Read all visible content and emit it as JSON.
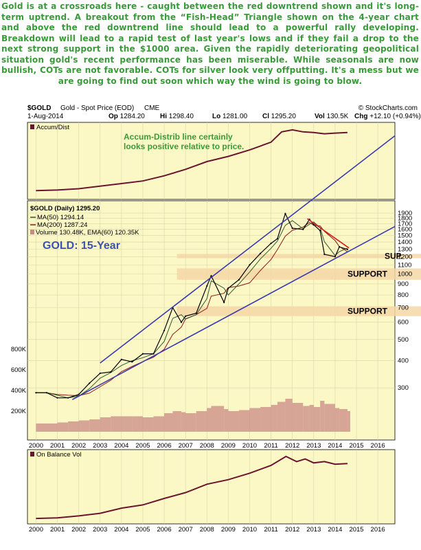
{
  "commentary": "Gold is at a crossroads here - caught between the red downtrend shown and it's long-term uptrend. A breakout from the “Fish-Head” Triangle shown on the 4-year chart and above the red downtrend line should lead to a powerful rally developing. Breakdown will lead to a rapid test of last year's lows and if they fail a drop to the next strong support in the $1000 area. Given the rapidly deteriorating geopolitical situation gold's recent performance has been miserable. While seasonals are now bullish, COTs are not favorable. COTs for silver look very offputting. It's a mess but we are going to find out soon which way the wind is going to blow.",
  "header": {
    "symbol": "$GOLD",
    "name": "Gold - Spot Price (EOD)",
    "exchange": "CME",
    "copyright": "© StockCharts.com",
    "date": "1-Aug-2014",
    "op_label": "Op",
    "op": "1284.20",
    "hi_label": "Hi",
    "hi": "1298.40",
    "lo_label": "Lo",
    "lo": "1281.00",
    "cl_label": "Cl",
    "cl": "1295.20",
    "vol_label": "Vol",
    "vol": "130.5K",
    "chg_label": "Chg",
    "chg": "+12.10 (+0.94%)"
  },
  "colors": {
    "panel_bg": "#fbf8c6",
    "grid": "#d8d4a8",
    "price": "#000000",
    "ma50": "#2d5a2d",
    "ma200": "#8b1a1a",
    "volume": "#c98a86",
    "indicator": "#6b1430",
    "trendline": "#3a3ab0",
    "downtrend": "#d02020",
    "support_band": "#f5d7a6",
    "annotation_green": "#3a9a3a",
    "title_blue": "#3d4fb0",
    "breakout_fill": "#8fb8a0"
  },
  "top_panel": {
    "legend": "Accum/Dist",
    "annotation_line1": "Accum-Distrib line certainly",
    "annotation_line2": "looks positive relative to price."
  },
  "legend": {
    "price": "$GOLD (Daily) 1295.20",
    "ma50": "MA(50) 1294.14",
    "ma200": "MA(200) 1287.24",
    "volume": "Volume 130.48K, EMA(60) 120.35K",
    "title": "GOLD: 15-Year"
  },
  "supports": [
    {
      "label": "SUP.",
      "low": 1180,
      "high": 1235
    },
    {
      "label": "SUPPORT",
      "low": 940,
      "high": 1060
    },
    {
      "label": "SUPPORT",
      "low": 640,
      "high": 710
    }
  ],
  "bottom_panel": {
    "legend": "On Balance Vol"
  },
  "chart_data": {
    "type": "line",
    "x": [
      2000.0,
      2000.5,
      2001.0,
      2001.5,
      2002.0,
      2002.5,
      2003.0,
      2003.5,
      2004.0,
      2004.5,
      2005.0,
      2005.5,
      2006.0,
      2006.4,
      2006.8,
      2007.0,
      2007.5,
      2008.0,
      2008.2,
      2008.8,
      2009.0,
      2009.5,
      2010.0,
      2010.5,
      2011.0,
      2011.3,
      2011.67,
      2012.0,
      2012.5,
      2012.8,
      2013.0,
      2013.3,
      2013.5,
      2014.0,
      2014.2,
      2014.58
    ],
    "series": [
      {
        "name": "$GOLD (Daily) 1295.20",
        "values": [
          285,
          285,
          270,
          270,
          280,
          315,
          350,
          355,
          405,
          395,
          430,
          430,
          550,
          700,
          600,
          640,
          660,
          880,
          980,
          740,
          860,
          940,
          1100,
          1240,
          1380,
          1450,
          1890,
          1620,
          1600,
          1780,
          1680,
          1580,
          1230,
          1200,
          1330,
          1295
        ]
      }
    ],
    "xlabel": "",
    "ylabel": "",
    "xlim": [
      1999.6,
      2016.8
    ],
    "ylim": [
      200,
      1900
    ],
    "y_scale": "log",
    "x_tick_labels": [
      "2000",
      "2001",
      "2002",
      "2003",
      "2004",
      "2005",
      "2006",
      "2007",
      "2008",
      "2009",
      "2010",
      "2011",
      "2012",
      "2013",
      "2014",
      "2015",
      "2016"
    ],
    "y_ticks_right": [
      300,
      400,
      500,
      600,
      700,
      800,
      900,
      1000,
      1100,
      1200,
      1300,
      1400,
      1500,
      1600,
      1700,
      1800,
      1900
    ],
    "volume_axis_labels": [
      "200K",
      "400K",
      "600K",
      "800K"
    ],
    "volume_axis_max": 1000000,
    "volume": [
      80000,
      80000,
      90000,
      100000,
      110000,
      120000,
      140000,
      150000,
      150000,
      150000,
      140000,
      150000,
      180000,
      200000,
      190000,
      180000,
      200000,
      230000,
      250000,
      220000,
      200000,
      210000,
      230000,
      240000,
      260000,
      290000,
      320000,
      280000,
      250000,
      260000,
      240000,
      300000,
      270000,
      230000,
      220000,
      200000
    ],
    "uptrend_line": [
      {
        "x": 2001.7,
        "y": 265
      },
      {
        "x": 2016.8,
        "y": 1650
      }
    ],
    "upper_channel_line": [
      {
        "x": 2003.0,
        "y": 390
      },
      {
        "x": 2016.8,
        "y": 4300
      }
    ],
    "downtrend_line": [
      {
        "x": 2012.7,
        "y": 1790
      },
      {
        "x": 2014.65,
        "y": 1315
      }
    ],
    "grid": true,
    "legend_position": "top-left"
  },
  "accum_dist": {
    "x": [
      2000.0,
      2001.0,
      2002.0,
      2003.0,
      2004.0,
      2005.0,
      2006.0,
      2007.0,
      2008.0,
      2009.0,
      2010.0,
      2011.0,
      2011.5,
      2012.0,
      2012.5,
      2013.0,
      2013.5,
      2014.0,
      2014.58
    ],
    "values": [
      5,
      6,
      8,
      12,
      16,
      20,
      28,
      38,
      50,
      58,
      68,
      80,
      96,
      99,
      96,
      95,
      93,
      94,
      95
    ]
  },
  "obv": {
    "x": [
      2000.0,
      2001.0,
      2002.0,
      2003.0,
      2004.0,
      2005.0,
      2006.0,
      2007.0,
      2008.0,
      2009.0,
      2010.0,
      2011.0,
      2011.7,
      2012.2,
      2012.6,
      2013.0,
      2013.5,
      2014.0,
      2014.58
    ],
    "values": [
      2,
      3,
      6,
      10,
      18,
      23,
      33,
      42,
      55,
      62,
      72,
      84,
      98,
      90,
      94,
      88,
      90,
      86,
      87
    ]
  }
}
